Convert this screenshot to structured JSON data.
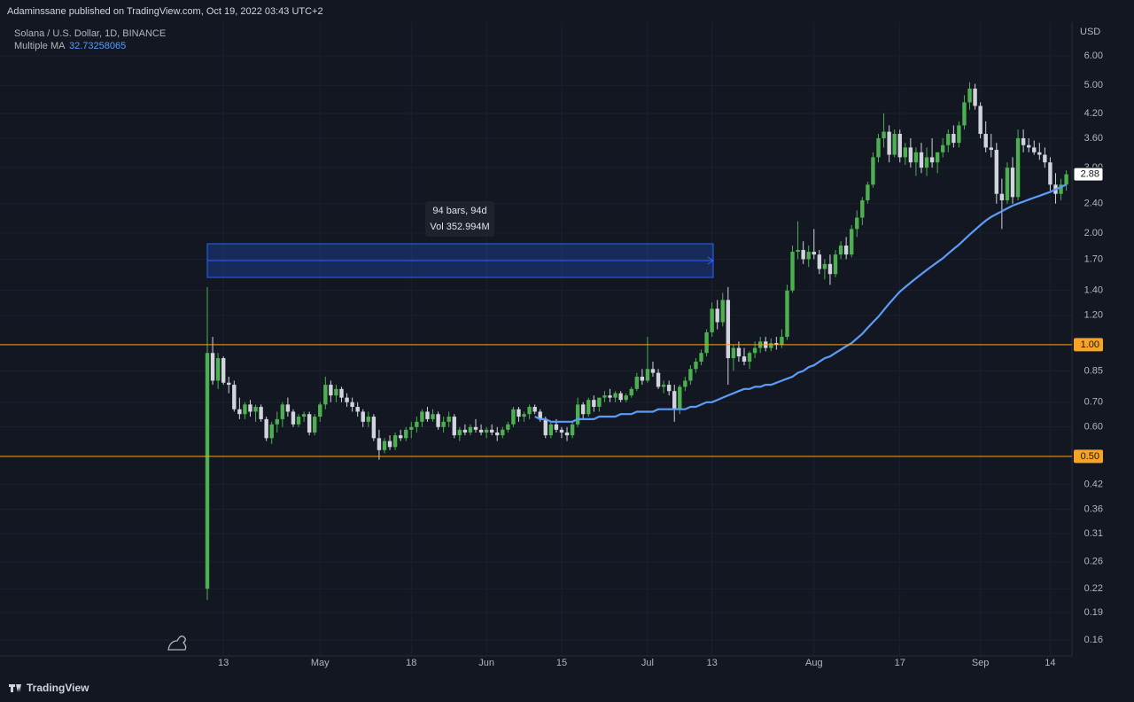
{
  "header": "Adaminssane published on TradingView.com, Oct 19, 2022 03:43 UTC+2",
  "footer": "TradingView",
  "chart_data": {
    "type": "candlestick",
    "title": "Solana / U.S. Dollar, 1D, BINANCE",
    "y_axis_label": "USD",
    "log_scale": true,
    "grid": true,
    "up_color": "#4caf50",
    "down_color": "#d1d4dc",
    "ylim": [
      0.145,
      7.4
    ],
    "yticks": [
      {
        "value": 6,
        "label": "6.00"
      },
      {
        "value": 5,
        "label": "5.00"
      },
      {
        "value": 4.2,
        "label": "4.20"
      },
      {
        "value": 3.6,
        "label": "3.60"
      },
      {
        "value": 3,
        "label": "3.00"
      },
      {
        "value": 2.4,
        "label": "2.40"
      },
      {
        "value": 2,
        "label": "2.00"
      },
      {
        "value": 1.7,
        "label": "1.70"
      },
      {
        "value": 1.4,
        "label": "1.40"
      },
      {
        "value": 1.2,
        "label": "1.20"
      },
      {
        "value": 0.85,
        "label": "0.85"
      },
      {
        "value": 0.7,
        "label": "0.70"
      },
      {
        "value": 0.6,
        "label": "0.60"
      },
      {
        "value": 0.42,
        "label": "0.42"
      },
      {
        "value": 0.36,
        "label": "0.36"
      },
      {
        "value": 0.31,
        "label": "0.31"
      },
      {
        "value": 0.26,
        "label": "0.26"
      },
      {
        "value": 0.22,
        "label": "0.22"
      },
      {
        "value": 0.19,
        "label": "0.19"
      },
      {
        "value": 0.16,
        "label": "0.16"
      }
    ],
    "xticks": [
      {
        "value": "Apr 13",
        "label": "13"
      },
      {
        "value": "May 1",
        "label": "May"
      },
      {
        "value": "May 18",
        "label": "18"
      },
      {
        "value": "Jun 1",
        "label": "Jun"
      },
      {
        "value": "Jun 15",
        "label": "15"
      },
      {
        "value": "Jul 1",
        "label": "Jul"
      },
      {
        "value": "Jul 13",
        "label": "13"
      },
      {
        "value": "Aug 1",
        "label": "Aug"
      },
      {
        "value": "Aug 17",
        "label": "17"
      },
      {
        "value": "Sep 1",
        "label": "Sep"
      },
      {
        "value": "Sep 14",
        "label": "14"
      }
    ],
    "hlines": [
      {
        "value": 1,
        "label": "1.00",
        "color": "#f7a325"
      },
      {
        "value": 0.5,
        "label": "0.50",
        "color": "#f7a325"
      }
    ],
    "annotations": [
      "94 bars, 94d",
      "Vol 352.994M"
    ],
    "ma_value": 32.73258065,
    "x": [
      "Apr 10",
      "Apr 11",
      "Apr 12",
      "Apr 13",
      "Apr 14",
      "Apr 15",
      "Apr 16",
      "Apr 17",
      "Apr 18",
      "Apr 19",
      "Apr 20",
      "Apr 21",
      "Apr 22",
      "Apr 23",
      "Apr 24",
      "Apr 25",
      "Apr 26",
      "Apr 27",
      "Apr 28",
      "Apr 29",
      "Apr 30",
      "May 1",
      "May 2",
      "May 3",
      "May 4",
      "May 5",
      "May 6",
      "May 7",
      "May 8",
      "May 9",
      "May 10",
      "May 11",
      "May 12",
      "May 13",
      "May 14",
      "May 15",
      "May 16",
      "May 17",
      "May 18",
      "May 19",
      "May 20",
      "May 21",
      "May 22",
      "May 23",
      "May 24",
      "May 25",
      "May 26",
      "May 27",
      "May 28",
      "May 29",
      "May 30",
      "May 31",
      "Jun 1",
      "Jun 2",
      "Jun 3",
      "Jun 4",
      "Jun 5",
      "Jun 6",
      "Jun 7",
      "Jun 8",
      "Jun 9",
      "Jun 10",
      "Jun 11",
      "Jun 12",
      "Jun 13",
      "Jun 14",
      "Jun 15",
      "Jun 16",
      "Jun 17",
      "Jun 18",
      "Jun 19",
      "Jun 20",
      "Jun 21",
      "Jun 22",
      "Jun 23",
      "Jun 24",
      "Jun 25",
      "Jun 26",
      "Jun 27",
      "Jun 28",
      "Jun 29",
      "Jun 30",
      "Jul 1",
      "Jul 2",
      "Jul 3",
      "Jul 4",
      "Jul 5",
      "Jul 6",
      "Jul 7",
      "Jul 8",
      "Jul 9",
      "Jul 10",
      "Jul 11",
      "Jul 12",
      "Jul 13",
      "Jul 14",
      "Jul 15",
      "Jul 16",
      "Jul 17",
      "Jul 18",
      "Jul 19",
      "Jul 20",
      "Jul 21",
      "Jul 22",
      "Jul 23",
      "Jul 24",
      "Jul 25",
      "Jul 26",
      "Jul 27",
      "Jul 28",
      "Jul 29",
      "Jul 30",
      "Jul 31",
      "Aug 1",
      "Aug 2",
      "Aug 3",
      "Aug 4",
      "Aug 5",
      "Aug 6",
      "Aug 7",
      "Aug 8",
      "Aug 9",
      "Aug 10",
      "Aug 11",
      "Aug 12",
      "Aug 13",
      "Aug 14",
      "Aug 15",
      "Aug 16",
      "Aug 17",
      "Aug 18",
      "Aug 19",
      "Aug 20",
      "Aug 21",
      "Aug 22",
      "Aug 23",
      "Aug 24",
      "Aug 25",
      "Aug 26",
      "Aug 27",
      "Aug 28",
      "Aug 29",
      "Aug 30",
      "Aug 31",
      "Sep 1",
      "Sep 2",
      "Sep 3",
      "Sep 4",
      "Sep 5",
      "Sep 6",
      "Sep 7",
      "Sep 8",
      "Sep 9",
      "Sep 10",
      "Sep 11",
      "Sep 12",
      "Sep 13",
      "Sep 14",
      "Sep 15",
      "Sep 16",
      "Sep 17"
    ],
    "open": [
      0.22,
      0.95,
      0.8,
      0.92,
      0.79,
      0.78,
      0.67,
      0.65,
      0.69,
      0.66,
      0.68,
      0.63,
      0.56,
      0.61,
      0.63,
      0.69,
      0.66,
      0.61,
      0.64,
      0.65,
      0.58,
      0.64,
      0.69,
      0.78,
      0.73,
      0.76,
      0.72,
      0.7,
      0.68,
      0.66,
      0.62,
      0.64,
      0.56,
      0.52,
      0.55,
      0.53,
      0.57,
      0.56,
      0.59,
      0.6,
      0.62,
      0.66,
      0.63,
      0.65,
      0.6,
      0.62,
      0.64,
      0.57,
      0.59,
      0.58,
      0.6,
      0.59,
      0.58,
      0.59,
      0.58,
      0.57,
      0.59,
      0.61,
      0.67,
      0.64,
      0.65,
      0.68,
      0.66,
      0.63,
      0.57,
      0.61,
      0.59,
      0.58,
      0.57,
      0.61,
      0.69,
      0.65,
      0.71,
      0.68,
      0.72,
      0.73,
      0.72,
      0.74,
      0.71,
      0.73,
      0.76,
      0.82,
      0.8,
      0.86,
      0.84,
      0.77,
      0.78,
      0.75,
      0.67,
      0.77,
      0.8,
      0.86,
      0.9,
      0.95,
      1.08,
      1.25,
      1.15,
      1.32,
      0.92,
      0.98,
      0.93,
      0.9,
      0.95,
      0.98,
      1.02,
      0.98,
      1.01,
      1.0,
      1.05,
      1.4,
      1.78,
      1.8,
      1.7,
      1.78,
      1.75,
      1.6,
      1.65,
      1.55,
      1.75,
      1.85,
      1.75,
      2.05,
      2.2,
      2.45,
      2.7,
      3.2,
      3.6,
      3.75,
      3.25,
      3.7,
      3.2,
      3.4,
      3.1,
      3.3,
      3.0,
      3.2,
      3.1,
      3.3,
      3.45,
      3.7,
      3.5,
      3.9,
      4.5,
      4.9,
      4.4,
      3.7,
      3.4,
      3.35,
      2.55,
      2.45,
      3.0,
      2.5,
      3.6,
      3.45,
      3.4,
      3.3,
      3.25,
      3.1,
      2.7,
      2.55,
      2.7
    ],
    "high": [
      1.43,
      1.05,
      0.95,
      0.93,
      0.82,
      0.8,
      0.72,
      0.7,
      0.71,
      0.69,
      0.69,
      0.64,
      0.62,
      0.66,
      0.7,
      0.72,
      0.67,
      0.65,
      0.66,
      0.66,
      0.65,
      0.7,
      0.82,
      0.8,
      0.78,
      0.77,
      0.74,
      0.72,
      0.7,
      0.67,
      0.66,
      0.65,
      0.59,
      0.56,
      0.57,
      0.58,
      0.59,
      0.6,
      0.62,
      0.64,
      0.67,
      0.68,
      0.67,
      0.66,
      0.64,
      0.66,
      0.65,
      0.6,
      0.61,
      0.61,
      0.63,
      0.61,
      0.6,
      0.61,
      0.6,
      0.6,
      0.62,
      0.68,
      0.68,
      0.66,
      0.69,
      0.69,
      0.67,
      0.64,
      0.62,
      0.63,
      0.6,
      0.6,
      0.62,
      0.72,
      0.7,
      0.72,
      0.73,
      0.72,
      0.75,
      0.76,
      0.75,
      0.75,
      0.74,
      0.77,
      0.84,
      0.86,
      1.05,
      0.9,
      0.86,
      0.8,
      0.8,
      0.78,
      0.78,
      0.82,
      0.88,
      0.92,
      0.97,
      1.1,
      1.3,
      1.32,
      1.38,
      1.43,
      1.0,
      1.02,
      0.98,
      0.96,
      1.02,
      1.05,
      1.05,
      1.04,
      1.05,
      1.1,
      1.45,
      1.85,
      2.15,
      1.9,
      1.85,
      2.05,
      1.8,
      1.7,
      1.75,
      1.8,
      1.9,
      1.95,
      2.1,
      2.3,
      2.5,
      2.75,
      3.3,
      3.7,
      4.2,
      3.9,
      3.8,
      3.8,
      3.5,
      3.6,
      3.4,
      3.5,
      3.4,
      3.6,
      3.3,
      3.6,
      3.8,
      3.9,
      4.0,
      4.7,
      5.1,
      5.05,
      4.5,
      4.0,
      3.7,
      3.5,
      2.8,
      3.1,
      3.2,
      3.8,
      3.8,
      3.6,
      3.55,
      3.5,
      3.4,
      3.2,
      2.9,
      2.8,
      2.95
    ],
    "low": [
      0.205,
      0.78,
      0.76,
      0.78,
      0.74,
      0.66,
      0.63,
      0.63,
      0.64,
      0.62,
      0.62,
      0.55,
      0.54,
      0.58,
      0.6,
      0.64,
      0.6,
      0.6,
      0.62,
      0.57,
      0.57,
      0.62,
      0.67,
      0.7,
      0.7,
      0.7,
      0.68,
      0.66,
      0.64,
      0.6,
      0.6,
      0.55,
      0.49,
      0.51,
      0.52,
      0.52,
      0.55,
      0.55,
      0.56,
      0.58,
      0.6,
      0.62,
      0.62,
      0.59,
      0.58,
      0.6,
      0.56,
      0.55,
      0.57,
      0.57,
      0.58,
      0.57,
      0.56,
      0.57,
      0.55,
      0.56,
      0.58,
      0.6,
      0.62,
      0.62,
      0.63,
      0.65,
      0.62,
      0.56,
      0.56,
      0.58,
      0.56,
      0.55,
      0.56,
      0.6,
      0.63,
      0.64,
      0.66,
      0.66,
      0.7,
      0.7,
      0.7,
      0.7,
      0.7,
      0.72,
      0.75,
      0.78,
      0.79,
      0.82,
      0.76,
      0.74,
      0.73,
      0.62,
      0.65,
      0.75,
      0.78,
      0.84,
      0.88,
      0.93,
      1.05,
      1.1,
      1.12,
      0.78,
      0.85,
      0.9,
      0.88,
      0.86,
      0.92,
      0.95,
      0.96,
      0.96,
      0.97,
      0.98,
      1.03,
      1.38,
      1.7,
      1.65,
      1.62,
      1.7,
      1.55,
      1.5,
      1.45,
      1.52,
      1.7,
      1.7,
      1.72,
      1.95,
      2.1,
      2.4,
      2.65,
      3.1,
      3.4,
      3.1,
      3.2,
      3.1,
      3.05,
      3.0,
      2.85,
      2.9,
      2.85,
      3.0,
      2.9,
      3.2,
      3.3,
      3.4,
      3.4,
      3.8,
      4.3,
      4.3,
      3.6,
      3.3,
      3.2,
      2.4,
      2.05,
      2.4,
      2.4,
      2.45,
      3.3,
      3.3,
      3.25,
      3.15,
      3.0,
      2.6,
      2.4,
      2.45,
      2.6
    ],
    "close": [
      0.95,
      0.8,
      0.92,
      0.79,
      0.78,
      0.67,
      0.65,
      0.69,
      0.66,
      0.68,
      0.63,
      0.56,
      0.61,
      0.63,
      0.69,
      0.66,
      0.61,
      0.64,
      0.65,
      0.58,
      0.64,
      0.69,
      0.78,
      0.73,
      0.76,
      0.72,
      0.7,
      0.68,
      0.66,
      0.62,
      0.64,
      0.56,
      0.52,
      0.55,
      0.53,
      0.57,
      0.56,
      0.59,
      0.6,
      0.62,
      0.66,
      0.63,
      0.65,
      0.6,
      0.62,
      0.64,
      0.57,
      0.59,
      0.58,
      0.6,
      0.59,
      0.58,
      0.59,
      0.58,
      0.57,
      0.59,
      0.61,
      0.67,
      0.64,
      0.65,
      0.68,
      0.66,
      0.63,
      0.57,
      0.61,
      0.59,
      0.58,
      0.57,
      0.61,
      0.69,
      0.65,
      0.71,
      0.68,
      0.72,
      0.73,
      0.72,
      0.74,
      0.71,
      0.73,
      0.76,
      0.82,
      0.8,
      0.86,
      0.84,
      0.77,
      0.78,
      0.75,
      0.67,
      0.77,
      0.8,
      0.86,
      0.9,
      0.95,
      1.08,
      1.25,
      1.15,
      1.32,
      0.92,
      0.98,
      0.93,
      0.9,
      0.95,
      0.98,
      1.02,
      0.98,
      1.01,
      1.0,
      1.05,
      1.4,
      1.78,
      1.8,
      1.7,
      1.78,
      1.75,
      1.6,
      1.65,
      1.55,
      1.75,
      1.85,
      1.75,
      2.05,
      2.2,
      2.45,
      2.7,
      3.2,
      3.6,
      3.75,
      3.25,
      3.7,
      3.2,
      3.4,
      3.1,
      3.3,
      3.0,
      3.2,
      3.1,
      3.3,
      3.45,
      3.7,
      3.5,
      3.9,
      4.5,
      4.9,
      4.4,
      3.7,
      3.4,
      3.35,
      2.55,
      2.45,
      3.0,
      2.5,
      3.6,
      3.45,
      3.4,
      3.3,
      3.25,
      3.1,
      2.7,
      2.55,
      2.7,
      2.88
    ],
    "series": [
      {
        "name": "Multiple MA",
        "color": "#5b9cf6",
        "values": [
          null,
          null,
          null,
          null,
          null,
          null,
          null,
          null,
          null,
          null,
          null,
          null,
          null,
          null,
          null,
          null,
          null,
          null,
          null,
          null,
          null,
          null,
          null,
          null,
          null,
          null,
          null,
          null,
          null,
          null,
          null,
          null,
          null,
          null,
          null,
          null,
          null,
          null,
          null,
          null,
          null,
          null,
          null,
          null,
          null,
          null,
          null,
          null,
          null,
          null,
          null,
          null,
          null,
          null,
          null,
          null,
          null,
          null,
          null,
          null,
          null,
          0.64,
          0.63,
          0.63,
          0.62,
          0.62,
          0.62,
          0.62,
          0.62,
          0.63,
          0.63,
          0.63,
          0.63,
          0.64,
          0.64,
          0.64,
          0.64,
          0.65,
          0.65,
          0.65,
          0.66,
          0.66,
          0.66,
          0.66,
          0.67,
          0.67,
          0.67,
          0.67,
          0.67,
          0.67,
          0.68,
          0.68,
          0.69,
          0.7,
          0.7,
          0.71,
          0.72,
          0.73,
          0.74,
          0.75,
          0.76,
          0.76,
          0.77,
          0.77,
          0.78,
          0.78,
          0.79,
          0.8,
          0.81,
          0.82,
          0.84,
          0.85,
          0.87,
          0.88,
          0.9,
          0.92,
          0.93,
          0.95,
          0.97,
          0.99,
          1.01,
          1.04,
          1.07,
          1.11,
          1.15,
          1.19,
          1.24,
          1.29,
          1.34,
          1.39,
          1.43,
          1.47,
          1.51,
          1.55,
          1.59,
          1.63,
          1.67,
          1.71,
          1.76,
          1.81,
          1.86,
          1.92,
          1.98,
          2.04,
          2.1,
          2.16,
          2.21,
          2.25,
          2.29,
          2.33,
          2.37,
          2.4,
          2.43,
          2.46,
          2.49,
          2.52,
          2.55,
          2.58,
          2.62,
          2.66,
          2.7
        ]
      }
    ]
  }
}
